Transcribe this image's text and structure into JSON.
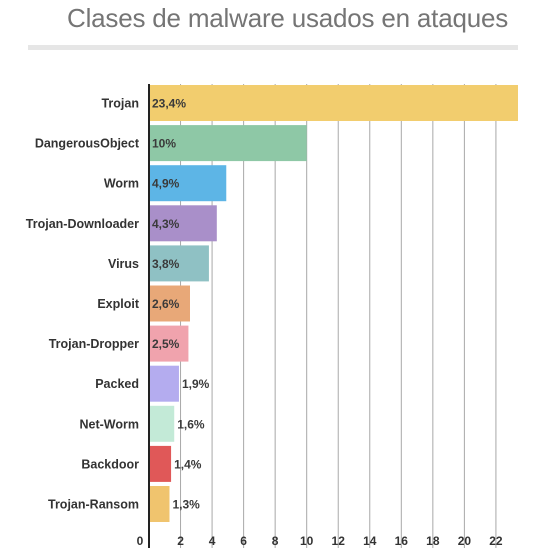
{
  "title": "Clases de malware usados en ataques",
  "chart_data": {
    "type": "bar",
    "orientation": "horizontal",
    "title": "Clases de malware usados en ataques",
    "xlabel": "",
    "ylabel": "",
    "xlim": [
      0,
      23.4
    ],
    "grid": true,
    "legend": "none",
    "categories": [
      "Trojan",
      "DangerousObject",
      "Worm",
      "Trojan-Downloader",
      "Virus",
      "Exploit",
      "Trojan-Dropper",
      "Packed",
      "Net-Worm",
      "Backdoor",
      "Trojan-Ransom"
    ],
    "values": [
      23.4,
      10,
      4.9,
      4.3,
      3.8,
      2.6,
      2.5,
      1.9,
      1.6,
      1.4,
      1.3
    ],
    "value_labels": [
      "23,4%",
      "10%",
      "4,9%",
      "4,3%",
      "3,8%",
      "2,6%",
      "2,5%",
      "1,9%",
      "1,6%",
      "1,4%",
      "1,3%"
    ],
    "colors": [
      "#f2cd6e",
      "#8ec8a6",
      "#5db5e6",
      "#a98fc9",
      "#8fc1c4",
      "#e8a878",
      "#f0a3ad",
      "#b4acef",
      "#c3ead7",
      "#e05858",
      "#f0c46e"
    ],
    "x_ticks": [
      0,
      2,
      4,
      6,
      8,
      10,
      12,
      14,
      16,
      18,
      20,
      22
    ],
    "x_tick_labels": [
      "0",
      "2",
      "4",
      "6",
      "8",
      "10",
      "12",
      "14",
      "16",
      "18",
      "20",
      "22"
    ]
  }
}
